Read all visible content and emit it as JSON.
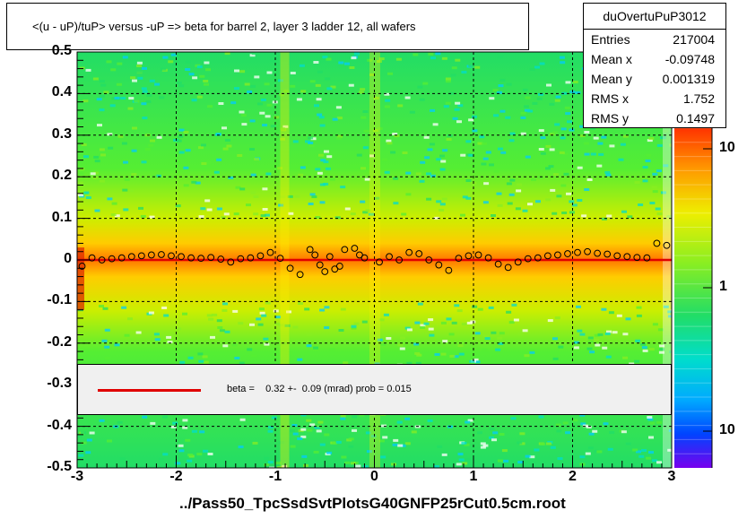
{
  "title": "<(u - uP)/tuP> versus  -uP => beta for barrel 2, layer 3 ladder 12, all wafers",
  "stats": {
    "name": "duOvertuPuP3012",
    "rows": [
      {
        "key": "Entries",
        "value": "217004"
      },
      {
        "key": "Mean x",
        "value": "-0.09748"
      },
      {
        "key": "Mean y",
        "value": "0.001319"
      },
      {
        "key": "RMS x",
        "value": "1.752"
      },
      {
        "key": "RMS y",
        "value": "0.1497"
      }
    ]
  },
  "legend_text": "beta =    0.32 +-  0.09 (mrad) prob = 0.015",
  "xlabel": "../Pass50_TpcSsdSvtPlotsG40GNFP25rCut0.5cm.root",
  "colors": {
    "fit_line": "#e00000",
    "legend_bg": "#f0f0f0"
  },
  "chart_data": {
    "type": "heatmap",
    "xlim": [
      -3,
      3
    ],
    "ylim": [
      -0.5,
      0.5
    ],
    "xticks": [
      -3,
      -2,
      -1,
      0,
      1,
      2,
      3
    ],
    "yticks": [
      0.5,
      0.4,
      0.3,
      0.2,
      0.1,
      0,
      -0.1,
      -0.2,
      -0.3,
      -0.4,
      -0.5
    ],
    "ytick_labels": [
      "0.5",
      "0.4",
      "0.3",
      "0.2",
      "0.1",
      "0",
      "-0.1",
      "-0.2",
      "-0.3",
      "-0.4",
      "-0.5"
    ],
    "z_scale": "log",
    "z_tick_labels": [
      "10",
      "1",
      "10"
    ],
    "grid": true,
    "fit": {
      "x": [
        -3,
        3
      ],
      "y": [
        0.0,
        0.0
      ]
    },
    "profile_points": {
      "x": [
        -2.95,
        -2.85,
        -2.75,
        -2.65,
        -2.55,
        -2.45,
        -2.35,
        -2.25,
        -2.15,
        -2.05,
        -1.95,
        -1.85,
        -1.75,
        -1.65,
        -1.55,
        -1.45,
        -1.35,
        -1.25,
        -1.15,
        -1.05,
        -0.95,
        -0.85,
        -0.75,
        -0.65,
        -0.6,
        -0.55,
        -0.5,
        -0.45,
        -0.4,
        -0.35,
        -0.3,
        -0.2,
        -0.15,
        -0.1,
        0.05,
        0.15,
        0.25,
        0.35,
        0.45,
        0.55,
        0.65,
        0.75,
        0.85,
        0.95,
        1.05,
        1.15,
        1.25,
        1.35,
        1.45,
        1.55,
        1.65,
        1.75,
        1.85,
        1.95,
        2.05,
        2.15,
        2.25,
        2.35,
        2.45,
        2.55,
        2.65,
        2.75,
        2.85,
        2.95
      ],
      "y": [
        -0.015,
        0.005,
        0.0,
        0.003,
        0.005,
        0.008,
        0.01,
        0.012,
        0.013,
        0.01,
        0.008,
        0.005,
        0.004,
        0.006,
        0.002,
        -0.005,
        0.003,
        0.005,
        0.01,
        0.018,
        0.004,
        -0.02,
        -0.035,
        0.025,
        0.012,
        -0.012,
        -0.028,
        0.008,
        -0.022,
        -0.015,
        0.025,
        0.028,
        0.012,
        0.005,
        -0.005,
        0.008,
        0.0,
        0.018,
        0.015,
        0.0,
        -0.012,
        -0.025,
        0.004,
        0.01,
        0.012,
        0.005,
        -0.01,
        -0.018,
        -0.005,
        0.003,
        0.005,
        0.01,
        0.012,
        0.015,
        0.018,
        0.02,
        0.016,
        0.014,
        0.01,
        0.008,
        0.006,
        0.005,
        0.04,
        0.035
      ]
    }
  }
}
